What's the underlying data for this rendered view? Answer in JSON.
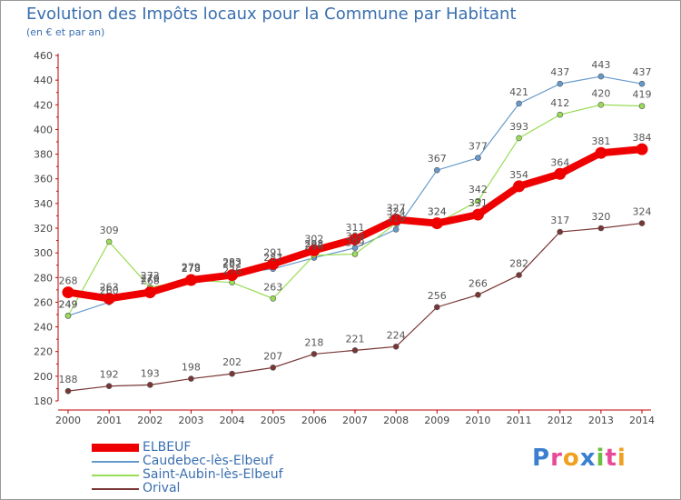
{
  "title": "Evolution des Impôts locaux pour la Commune par Habitant",
  "subtitle": "(en € et par an)",
  "logo": {
    "text": "Proxiti",
    "letters": [
      {
        "ch": "P",
        "color": "#3a7fd0"
      },
      {
        "ch": "r",
        "color": "#e84a9a"
      },
      {
        "ch": "o",
        "color": "#f0a020"
      },
      {
        "ch": "x",
        "color": "#3a7fd0"
      },
      {
        "ch": "i",
        "color": "#6cc040"
      },
      {
        "ch": "t",
        "color": "#e84a9a"
      },
      {
        "ch": "i",
        "color": "#f0a020"
      }
    ]
  },
  "chart_data": {
    "type": "line",
    "title": "Evolution des Impôts locaux pour la Commune par Habitant",
    "subtitle": "(en € et par an)",
    "x": [
      "2000",
      "2001",
      "2002",
      "2003",
      "2004",
      "2005",
      "2006",
      "2007",
      "2008",
      "2009",
      "2010",
      "2011",
      "2012",
      "2013",
      "2014"
    ],
    "ylim": [
      180,
      460
    ],
    "yticks": [
      180,
      200,
      220,
      240,
      260,
      280,
      300,
      320,
      340,
      360,
      380,
      400,
      420,
      440,
      460
    ],
    "grid": false,
    "legend_position": "bottom-left",
    "series": [
      {
        "name": "Caudebec-lès-Elbeuf",
        "color": "#6699cc",
        "emphasis": false,
        "values": [
          249,
          260,
          270,
          279,
          283,
          287,
          296,
          304,
          319,
          367,
          377,
          421,
          437,
          443,
          437
        ]
      },
      {
        "name": "Saint-Aubin-lès-Elbeuf",
        "color": "#99dd55",
        "emphasis": false,
        "values": [
          249,
          309,
          272,
          278,
          276,
          263,
          298,
          299,
          324,
          324,
          342,
          393,
          412,
          420,
          419
        ]
      },
      {
        "name": "Orival",
        "color": "#7a3535",
        "emphasis": false,
        "values": [
          188,
          192,
          193,
          198,
          202,
          207,
          218,
          221,
          224,
          256,
          266,
          282,
          317,
          320,
          324
        ]
      },
      {
        "name": "ELBEUF",
        "color": "#ee0000",
        "emphasis": true,
        "values": [
          268,
          263,
          268,
          278,
          282,
          291,
          302,
          311,
          327,
          324,
          331,
          354,
          364,
          381,
          384
        ]
      }
    ],
    "legend_order": [
      "ELBEUF",
      "Caudebec-lès-Elbeuf",
      "Saint-Aubin-lès-Elbeuf",
      "Orival"
    ]
  }
}
